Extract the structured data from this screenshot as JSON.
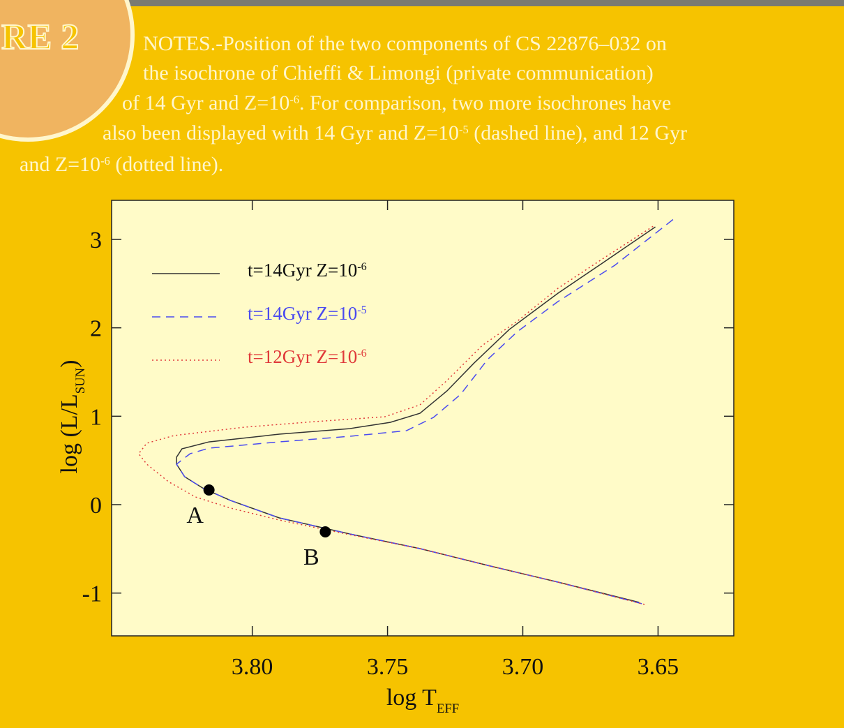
{
  "header": {
    "title": "RE 2"
  },
  "notes_lines": [
    [
      "NOTES.-Position of  the two components  of CS 22876–032 on"
    ],
    [
      "the isochrone of  Chieffi  & Limongi (private communication)"
    ],
    [
      "of  14 Gyr and Z=10",
      "-6",
      ". For comparison, two more isochrones have"
    ],
    [
      "also been displayed with 14 Gyr and Z=10",
      "-5",
      " (dashed line), and 12 Gyr"
    ],
    [
      "and Z=10",
      "-6",
      " (dotted line)."
    ]
  ],
  "chart_data": {
    "type": "line",
    "xlabel": [
      "log T",
      "EFF"
    ],
    "ylabel": [
      "log (L/L",
      "SUN",
      ")"
    ],
    "xlim": [
      3.852,
      3.622
    ],
    "ylim": [
      -1.484,
      3.442
    ],
    "xticks": [
      {
        "value": 3.8,
        "label": "3.80"
      },
      {
        "value": 3.75,
        "label": "3.75"
      },
      {
        "value": 3.7,
        "label": "3.70"
      },
      {
        "value": 3.65,
        "label": "3.65"
      }
    ],
    "yticks": [
      -1,
      0,
      1,
      2,
      3
    ],
    "series": [
      {
        "name": "t=14Gyr Z=10",
        "name_sup": "-6",
        "color": "#333333",
        "style": "solid",
        "x": [
          3.657,
          3.687,
          3.713,
          3.738,
          3.764,
          3.79,
          3.808,
          3.818,
          3.825,
          3.828,
          3.828,
          3.826,
          3.816,
          3.79,
          3.764,
          3.749,
          3.738,
          3.728,
          3.718,
          3.705,
          3.687,
          3.671,
          3.651
        ],
        "values": [
          -1.105,
          -0.876,
          -0.687,
          -0.497,
          -0.331,
          -0.15,
          0.047,
          0.182,
          0.316,
          0.458,
          0.537,
          0.631,
          0.71,
          0.797,
          0.86,
          0.931,
          1.034,
          1.287,
          1.602,
          1.981,
          2.391,
          2.723,
          3.141
        ]
      },
      {
        "name": "t=14Gyr Z=10",
        "name_sup": "-5",
        "color": "#4a4af0",
        "style": "dashed",
        "x": [
          3.656,
          3.687,
          3.713,
          3.738,
          3.764,
          3.79,
          3.808,
          3.818,
          3.825,
          3.828,
          3.823,
          3.816,
          3.79,
          3.764,
          3.743,
          3.733,
          3.723,
          3.713,
          3.702,
          3.687,
          3.666,
          3.644
        ],
        "values": [
          -1.12,
          -0.876,
          -0.687,
          -0.497,
          -0.331,
          -0.15,
          0.047,
          0.182,
          0.316,
          0.458,
          0.576,
          0.639,
          0.71,
          0.773,
          0.837,
          0.987,
          1.247,
          1.642,
          1.957,
          2.297,
          2.707,
          3.236
        ]
      },
      {
        "name": "t=12Gyr Z=10",
        "name_sup": "-6",
        "color": "#e03a3a",
        "style": "dotted",
        "x": [
          3.655,
          3.687,
          3.713,
          3.738,
          3.764,
          3.79,
          3.808,
          3.821,
          3.831,
          3.839,
          3.842,
          3.839,
          3.829,
          3.803,
          3.777,
          3.751,
          3.738,
          3.728,
          3.715,
          3.702,
          3.687,
          3.671,
          3.651
        ],
        "values": [
          -1.129,
          -0.876,
          -0.687,
          -0.497,
          -0.339,
          -0.174,
          -0.039,
          0.087,
          0.26,
          0.458,
          0.576,
          0.695,
          0.781,
          0.876,
          0.939,
          0.994,
          1.129,
          1.405,
          1.8,
          2.076,
          2.447,
          2.77,
          3.165
        ]
      }
    ],
    "points": [
      {
        "label": "A",
        "x": 3.816,
        "y": 0.166
      },
      {
        "label": "B",
        "x": 3.773,
        "y": -0.308
      }
    ]
  }
}
